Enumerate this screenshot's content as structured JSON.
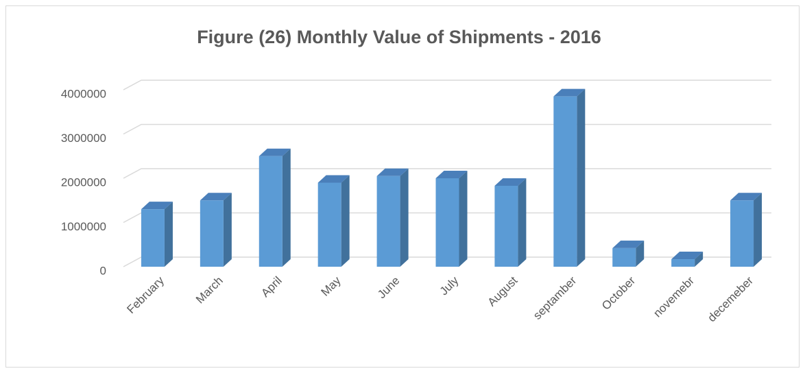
{
  "chart_data": {
    "type": "bar3d",
    "title": "Figure (26) Monthly Value of Shipments - 2016",
    "categories": [
      "February",
      "March",
      "April",
      "May",
      "June",
      "July",
      "August",
      "septamber",
      "October",
      "novemebr",
      "decemeber"
    ],
    "values": [
      1300000,
      1500000,
      2500000,
      1900000,
      2050000,
      2000000,
      1830000,
      3850000,
      420000,
      170000,
      1500000
    ],
    "color": "#5b9bd5",
    "ylim": [
      0,
      4000000
    ],
    "yticks": [
      0,
      1000000,
      2000000,
      3000000,
      4000000
    ],
    "grid": true
  }
}
